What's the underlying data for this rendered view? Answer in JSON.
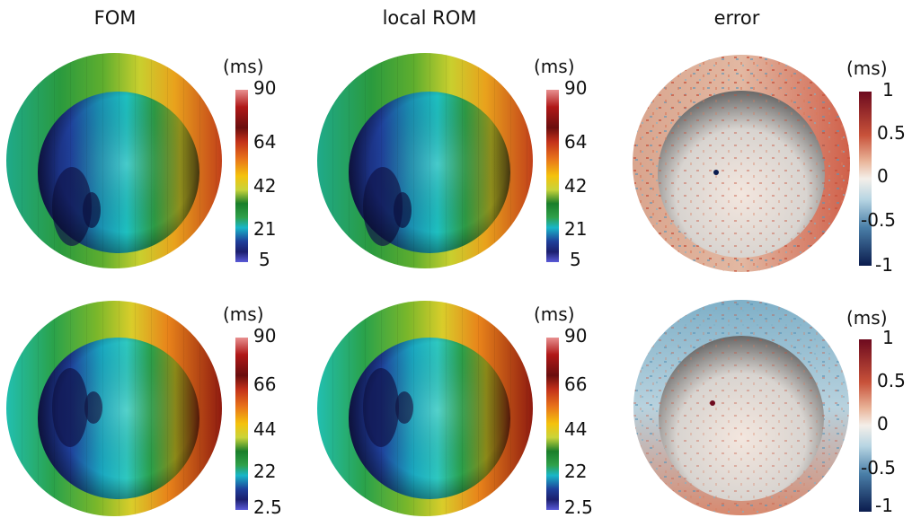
{
  "columns": {
    "fom": "FOM",
    "rom": "local ROM",
    "error": "error"
  },
  "unit": "(ms)",
  "rows": [
    {
      "time_ticks": [
        "90",
        "64",
        "42",
        "21",
        "5"
      ],
      "error_ticks": [
        "1",
        "0.5",
        "0",
        "-0.5",
        "-1"
      ]
    },
    {
      "time_ticks": [
        "90",
        "66",
        "44",
        "22",
        "2.5"
      ],
      "error_ticks": [
        "1",
        "0.5",
        "0",
        "-0.5",
        "-1"
      ]
    }
  ],
  "colors": {
    "time_scale": [
      "#5a5ad8",
      "#1c1f6e",
      "#1f3f9a",
      "#19b6c8",
      "#2fa04a",
      "#1a7f2a",
      "#c9d43a",
      "#f4c20d",
      "#e8731a",
      "#c2311a",
      "#6b0e0e",
      "#e89090"
    ],
    "error_scale": [
      "#0b1c4e",
      "#4a7fa8",
      "#b7d5e3",
      "#f4efe9",
      "#e9b499",
      "#c8523a",
      "#6d0a1e"
    ]
  }
}
